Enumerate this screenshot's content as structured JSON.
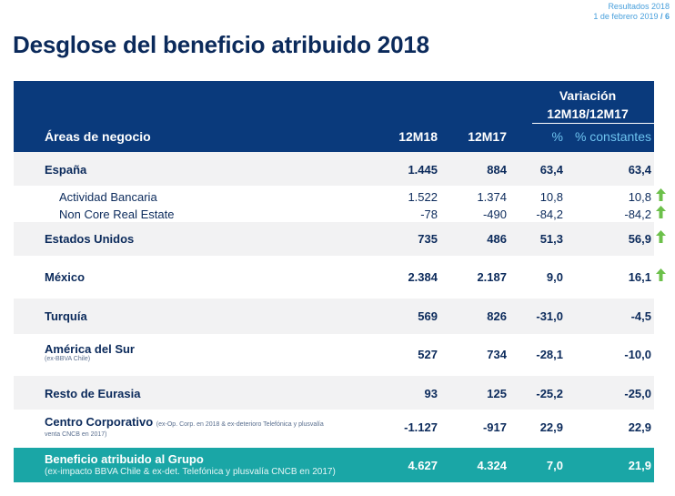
{
  "corner": {
    "line1": "Resultados 2018",
    "date": "1 de febrero 2019",
    "sep": " / ",
    "page": "6"
  },
  "title": "Desglose del beneficio atribuido 2018",
  "header": {
    "variacion_line1": "Variación",
    "variacion_line2": "12M18/12M17",
    "area": "Áreas de negocio",
    "col1": "12M18",
    "col2": "12M17",
    "col3": "%",
    "col4": "% constantes"
  },
  "rows": {
    "espana": {
      "label": "España",
      "v1": "1.445",
      "v2": "884",
      "v3": "63,4",
      "v4": "63,4"
    },
    "actividad": {
      "label": "Actividad Bancaria",
      "v1": "1.522",
      "v2": "1.374",
      "v3": "10,8",
      "v4": "10,8"
    },
    "noncore": {
      "label": "Non Core Real Estate",
      "v1": "-78",
      "v2": "-490",
      "v3": "-84,2",
      "v4": "-84,2"
    },
    "eeuu": {
      "label": "Estados Unidos",
      "v1": "735",
      "v2": "486",
      "v3": "51,3",
      "v4": "56,9"
    },
    "mexico": {
      "label": "México",
      "v1": "2.384",
      "v2": "2.187",
      "v3": "9,0",
      "v4": "16,1"
    },
    "turquia": {
      "label": "Turquía",
      "v1": "569",
      "v2": "826",
      "v3": "-31,0",
      "v4": "-4,5"
    },
    "america": {
      "label": "América del Sur",
      "note": "(ex-BBVA Chile)",
      "v1": "527",
      "v2": "734",
      "v3": "-28,1",
      "v4": "-10,0"
    },
    "eurasia": {
      "label": "Resto de Eurasia",
      "v1": "93",
      "v2": "125",
      "v3": "-25,2",
      "v4": "-25,0"
    },
    "centro": {
      "label": "Centro Corporativo",
      "note_a": "(ex-Op. Corp. en 2018 & ex-deterioro Telefónica y plusvalía",
      "note_b": "venta CNCB en 2017)",
      "v1": "-1.127",
      "v2": "-917",
      "v3": "22,9",
      "v4": "22,9"
    },
    "total": {
      "label": "Beneficio atribuido al Grupo",
      "note": "(ex-impacto BBVA Chile & ex-det. Telefónica y plusvalía CNCB en 2017)",
      "v1": "4.627",
      "v2": "4.324",
      "v3": "7,0",
      "v4": "21,9"
    }
  },
  "colors": {
    "header_bg": "#0a3a7c",
    "header_accent": "#6ec3ef",
    "total_bg": "#1aa6a6",
    "shade": "#f2f2f3",
    "arrow": "#6cc04a"
  }
}
